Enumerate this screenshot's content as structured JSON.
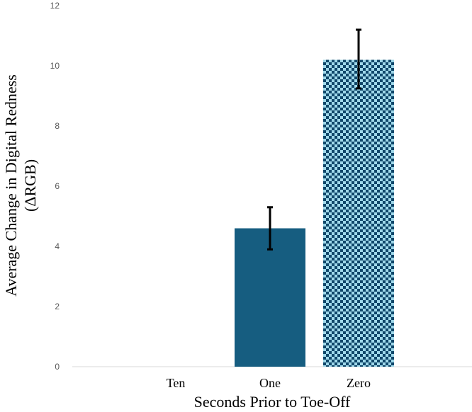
{
  "chart_data": {
    "type": "bar",
    "categories": [
      "Ten",
      "One",
      "Zero"
    ],
    "values": [
      0,
      4.6,
      10.2
    ],
    "error_bars": [
      null,
      [
        3.9,
        5.3
      ],
      [
        9.25,
        11.2
      ]
    ],
    "xlabel": "Seconds Prior to Toe-Off",
    "ylabel_lines": [
      "Average Change in Digital Redness",
      "(ΔRGB)"
    ],
    "ylim": [
      0,
      12
    ],
    "yticks": [
      "0",
      "2",
      "4",
      "6",
      "8",
      "10",
      "12"
    ],
    "grid": false,
    "legend": "none",
    "colors": {
      "solid_bar": "#165d80",
      "checker_light": "#9fd8ea",
      "checker_dark": "#10476a",
      "axis": "#d9d9d9",
      "error_bar": "#000000"
    },
    "bar_fills": [
      "none",
      "solid",
      "checkerboard"
    ]
  }
}
